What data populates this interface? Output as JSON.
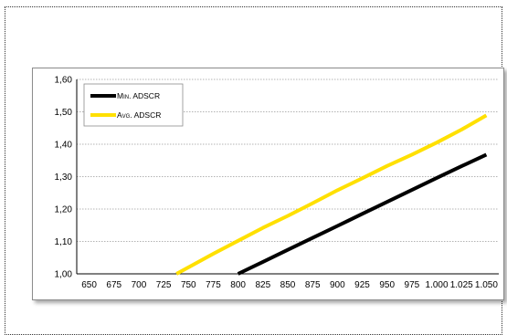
{
  "chart_data": {
    "type": "line",
    "title": "",
    "xlabel": "",
    "ylabel": "",
    "x_ticks": [
      "650",
      "675",
      "700",
      "725",
      "750",
      "775",
      "800",
      "825",
      "850",
      "875",
      "900",
      "925",
      "950",
      "975",
      "1.000",
      "1.025",
      "1.050"
    ],
    "y_ticks": [
      "1,00",
      "1,10",
      "1,20",
      "1,30",
      "1,40",
      "1,50",
      "1,60"
    ],
    "xlim": [
      637.5,
      1062.5
    ],
    "ylim": [
      1.0,
      1.6
    ],
    "grid": true,
    "legend_position": "top-left",
    "series": [
      {
        "name": "Min. ADSCR",
        "color": "#000000",
        "x": [
          800,
          825,
          850,
          875,
          900,
          925,
          950,
          975,
          1000,
          1025,
          1050
        ],
        "y": [
          1.0,
          1.037,
          1.074,
          1.111,
          1.148,
          1.185,
          1.222,
          1.259,
          1.296,
          1.332,
          1.368
        ]
      },
      {
        "name": "Avg. ADSCR",
        "color": "#FFE000",
        "x": [
          738,
          750,
          775,
          800,
          825,
          850,
          875,
          900,
          925,
          950,
          975,
          1000,
          1025,
          1050
        ],
        "y": [
          1.0,
          1.02,
          1.062,
          1.102,
          1.142,
          1.179,
          1.218,
          1.258,
          1.295,
          1.333,
          1.368,
          1.405,
          1.445,
          1.489
        ]
      }
    ]
  }
}
